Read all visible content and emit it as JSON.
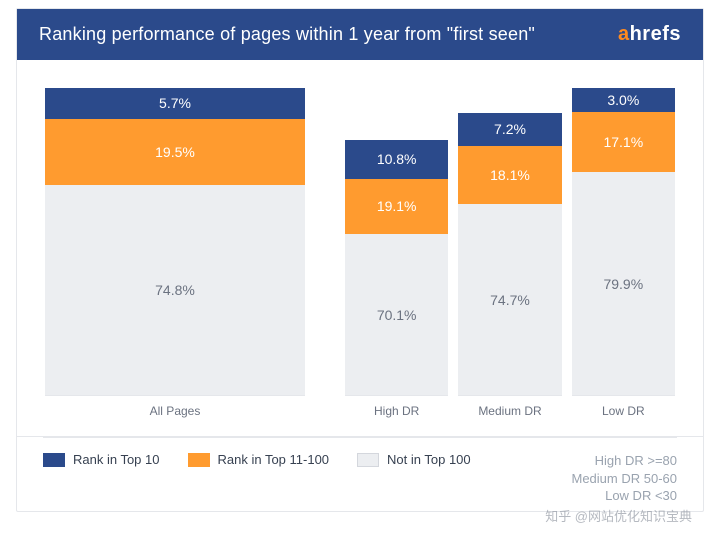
{
  "header": {
    "title": "Ranking performance of pages within 1 year from \"first seen\"",
    "bg_color": "#2b4a8b",
    "title_color": "#ffffff",
    "logo": {
      "lead_char": "a",
      "rest": "hrefs",
      "lead_color": "#ff8a1f",
      "rest_color": "#ffffff"
    }
  },
  "chart": {
    "type": "stacked-bar-100",
    "unit": "%",
    "colors": {
      "top10": "#2b4a8b",
      "top100": "#ff9b2f",
      "not100": "#eceef1",
      "not100_text": "#6b7280",
      "axis": "#e5e7eb"
    },
    "label_fontsize": 14,
    "axis_label_fontsize": 12,
    "left_group": {
      "columns": [
        {
          "label": "All Pages",
          "height_pct": 100,
          "segments": [
            {
              "key": "top10",
              "value": 5.7,
              "text": "5.7%"
            },
            {
              "key": "top100",
              "value": 19.5,
              "text": "19.5%"
            },
            {
              "key": "not100",
              "value": 74.8,
              "text": "74.8%"
            }
          ]
        }
      ]
    },
    "right_group": {
      "columns": [
        {
          "label": "High DR",
          "height_pct": 83,
          "segments": [
            {
              "key": "top10",
              "value": 10.8,
              "text": "10.8%"
            },
            {
              "key": "top100",
              "value": 19.1,
              "text": "19.1%"
            },
            {
              "key": "not100",
              "value": 70.1,
              "text": "70.1%"
            }
          ]
        },
        {
          "label": "Medium DR",
          "height_pct": 92,
          "segments": [
            {
              "key": "top10",
              "value": 7.2,
              "text": "7.2%"
            },
            {
              "key": "top100",
              "value": 18.1,
              "text": "18.1%"
            },
            {
              "key": "not100",
              "value": 74.7,
              "text": "74.7%"
            }
          ]
        },
        {
          "label": "Low DR",
          "height_pct": 100,
          "segments": [
            {
              "key": "top10",
              "value": 3.0,
              "text": "3.0%"
            },
            {
              "key": "top100",
              "value": 17.1,
              "text": "17.1%"
            },
            {
              "key": "not100",
              "value": 79.9,
              "text": "79.9%"
            }
          ]
        }
      ]
    }
  },
  "legend": [
    {
      "key": "top10",
      "label": "Rank in Top 10"
    },
    {
      "key": "top100",
      "label": "Rank in Top 11-100"
    },
    {
      "key": "not100",
      "label": "Not in Top 100"
    }
  ],
  "notes": [
    "High DR >=80",
    "Medium DR 50-60",
    "Low DR <30"
  ],
  "watermark": "知乎 @网站优化知识宝典"
}
